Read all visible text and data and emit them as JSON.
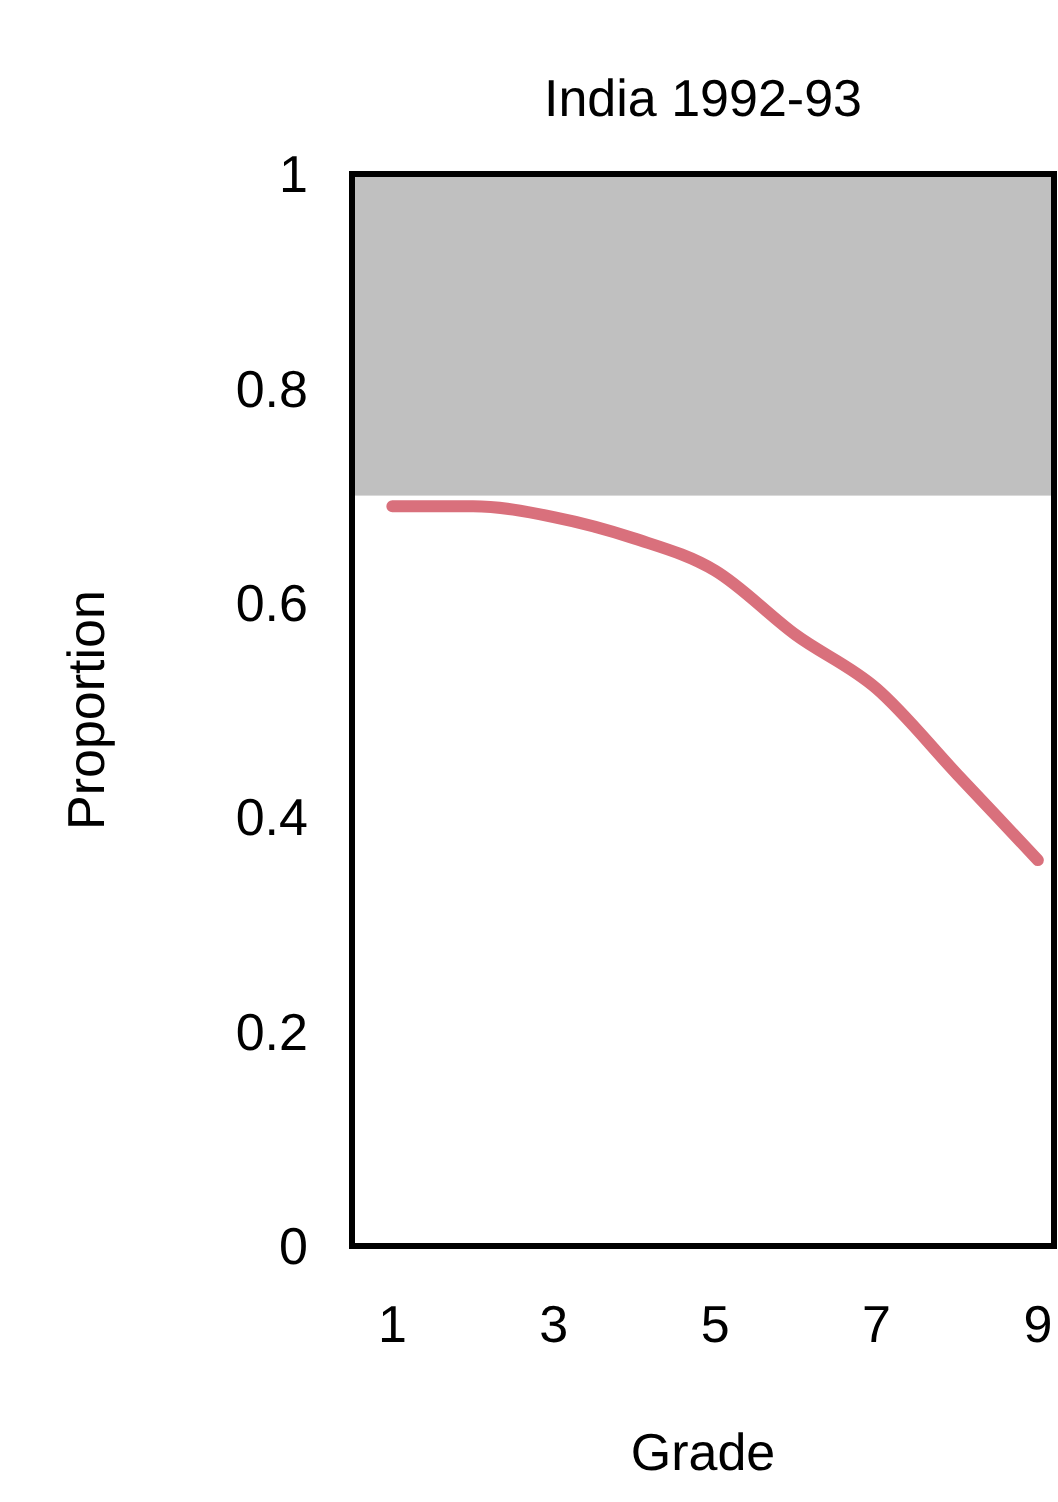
{
  "chart_data": {
    "type": "line",
    "title": "India 1992-93",
    "xlabel": "Grade",
    "ylabel": "Proportion",
    "x": [
      1,
      2,
      3,
      4,
      5,
      6,
      7,
      8,
      9
    ],
    "series": [
      {
        "color": "#d9707c",
        "values": [
          0.69,
          0.69,
          0.68,
          0.66,
          0.63,
          0.57,
          0.52,
          0.44,
          0.36
        ]
      }
    ],
    "xlim": [
      0.5,
      9.2
    ],
    "xticks": [
      1,
      3,
      5,
      7,
      9
    ],
    "ylim": [
      0,
      1
    ],
    "yticks": [
      0,
      0.2,
      0.4,
      0.6,
      0.8,
      1
    ],
    "bands": [
      {
        "axis": "y",
        "from": 0.7,
        "to": 1,
        "color": "#c0c0c0"
      }
    ],
    "grid": false
  }
}
